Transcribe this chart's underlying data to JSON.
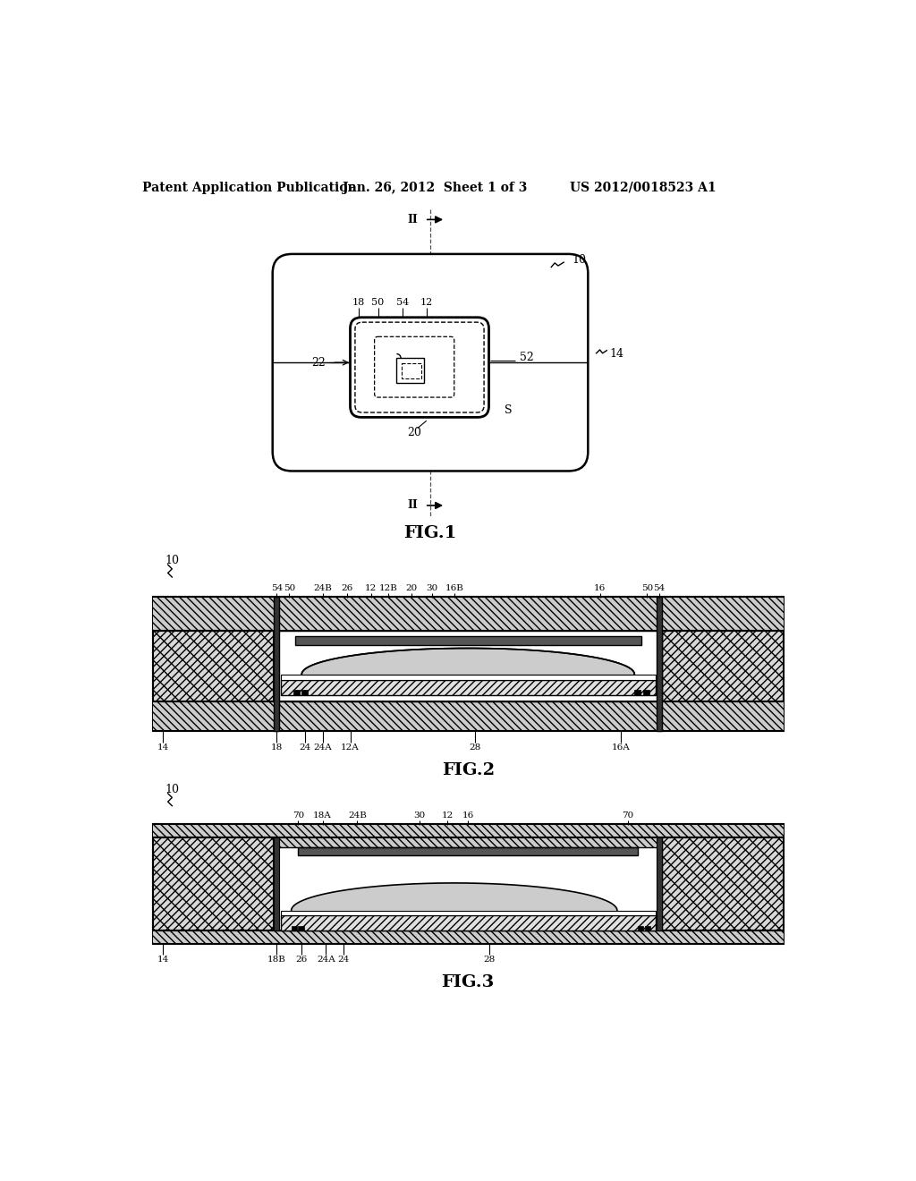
{
  "bg_color": "#ffffff",
  "header_text1": "Patent Application Publication",
  "header_text2": "Jan. 26, 2012  Sheet 1 of 3",
  "header_text3": "US 2012/0018523 A1",
  "fig1_caption": "FIG.1",
  "fig2_caption": "FIG.2",
  "fig3_caption": "FIG.3",
  "line_color": "#000000",
  "hatch_color": "#000000"
}
